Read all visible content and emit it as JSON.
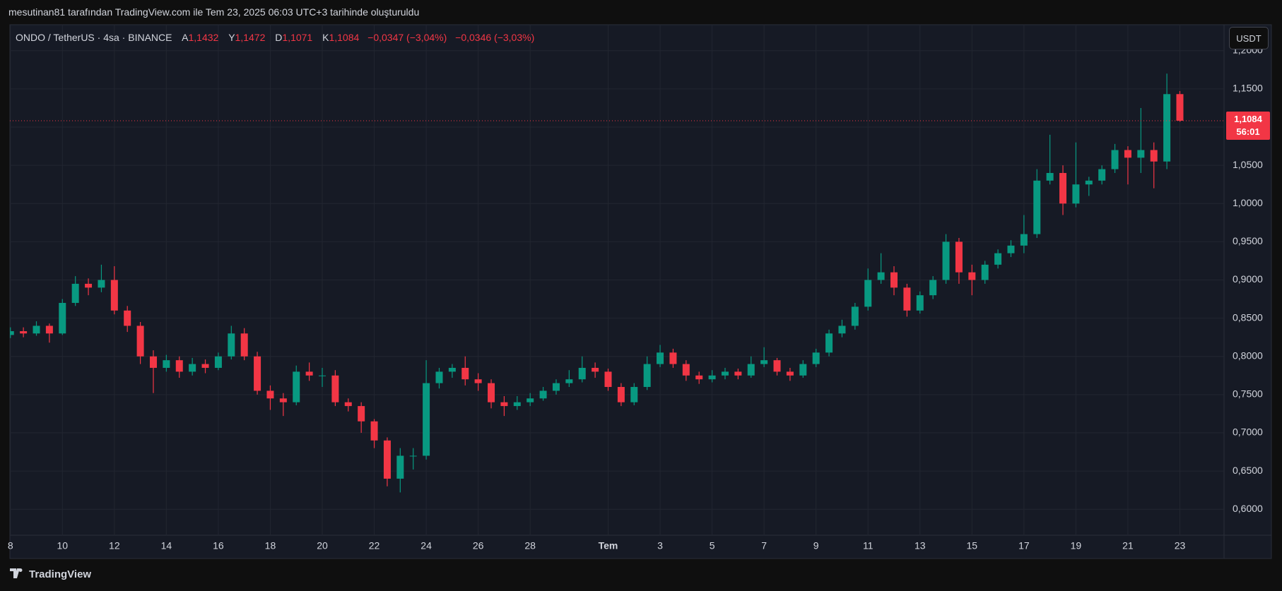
{
  "header": {
    "attribution": "mesutinan81 tarafından TradingView.com ile Tem 23, 2025 06:03 UTC+3 tarihinde oluşturuldu"
  },
  "footer": {
    "brand": "TradingView"
  },
  "chart_data": {
    "type": "candlestick",
    "symbol": "ONDO / TetherUS · 4sa · BINANCE",
    "legend": {
      "open_key": "A",
      "open": "1,1432",
      "high_key": "Y",
      "high": "1,1472",
      "low_key": "D",
      "low": "1,1071",
      "close_key": "K",
      "close": "1,1084",
      "change": "−0,0347 (−3,04%)",
      "change2": "−0,0346 (−3,03%)"
    },
    "currency": "USDT",
    "last_price_label": "1,1084",
    "countdown": "56:01",
    "x": [
      0,
      0.5,
      1,
      1.5,
      2,
      2.5,
      3,
      3.5,
      4,
      4.5,
      5,
      5.5,
      6,
      6.5,
      7,
      7.5,
      8,
      8.5,
      9,
      9.5,
      10,
      10.5,
      11,
      11.5,
      12,
      12.5,
      13,
      13.5,
      14,
      14.5,
      15,
      15.5,
      16,
      16.5,
      17,
      17.5,
      18,
      18.5,
      19,
      19.5,
      20,
      20.5,
      21,
      21.5,
      22,
      22.5,
      23,
      23.5,
      24,
      24.5,
      25,
      25.5,
      26,
      26.5,
      27,
      27.5,
      28,
      28.5,
      29,
      29.5,
      30,
      30.5,
      31,
      31.5,
      32,
      32.5,
      33,
      33.5,
      34,
      34.5,
      35,
      35.5,
      36,
      36.5,
      37,
      37.5,
      38,
      38.5,
      39,
      39.5,
      40,
      40.5,
      41,
      41.5,
      42,
      42.5,
      43,
      43.5,
      44,
      44.5,
      45
    ],
    "open": [
      0.828,
      0.833,
      0.83,
      0.84,
      0.83,
      0.87,
      0.895,
      0.89,
      0.9,
      0.86,
      0.84,
      0.8,
      0.785,
      0.795,
      0.78,
      0.79,
      0.785,
      0.8,
      0.83,
      0.8,
      0.755,
      0.745,
      0.74,
      0.78,
      0.775,
      0.775,
      0.74,
      0.735,
      0.715,
      0.69,
      0.64,
      0.67,
      0.67,
      0.765,
      0.78,
      0.785,
      0.77,
      0.765,
      0.74,
      0.735,
      0.74,
      0.745,
      0.755,
      0.765,
      0.77,
      0.785,
      0.78,
      0.76,
      0.74,
      0.76,
      0.79,
      0.805,
      0.79,
      0.775,
      0.77,
      0.775,
      0.78,
      0.775,
      0.79,
      0.795,
      0.78,
      0.775,
      0.79,
      0.805,
      0.83,
      0.84,
      0.865,
      0.9,
      0.91,
      0.89,
      0.86,
      0.88,
      0.9,
      0.95,
      0.91,
      0.9,
      0.92,
      0.935,
      0.945,
      0.96,
      1.03,
      1.04,
      1.0,
      1.025,
      1.03,
      1.045,
      1.07,
      1.06,
      1.07,
      1.055,
      1.1432
    ],
    "high": [
      0.838,
      0.838,
      0.846,
      0.843,
      0.875,
      0.905,
      0.902,
      0.92,
      0.918,
      0.866,
      0.845,
      0.808,
      0.802,
      0.8,
      0.798,
      0.796,
      0.805,
      0.84,
      0.837,
      0.806,
      0.762,
      0.752,
      0.788,
      0.792,
      0.785,
      0.782,
      0.745,
      0.74,
      0.718,
      0.694,
      0.68,
      0.68,
      0.795,
      0.785,
      0.79,
      0.8,
      0.778,
      0.77,
      0.748,
      0.748,
      0.752,
      0.76,
      0.77,
      0.782,
      0.8,
      0.792,
      0.784,
      0.765,
      0.765,
      0.8,
      0.815,
      0.81,
      0.795,
      0.78,
      0.782,
      0.785,
      0.784,
      0.8,
      0.812,
      0.798,
      0.785,
      0.795,
      0.81,
      0.835,
      0.848,
      0.87,
      0.915,
      0.935,
      0.918,
      0.895,
      0.885,
      0.905,
      0.96,
      0.955,
      0.92,
      0.925,
      0.94,
      0.952,
      0.985,
      1.045,
      1.09,
      1.05,
      1.08,
      1.035,
      1.05,
      1.078,
      1.075,
      1.125,
      1.08,
      1.17,
      1.1472
    ],
    "low": [
      0.824,
      0.825,
      0.827,
      0.818,
      0.828,
      0.866,
      0.88,
      0.884,
      0.855,
      0.832,
      0.79,
      0.752,
      0.78,
      0.772,
      0.775,
      0.778,
      0.782,
      0.796,
      0.795,
      0.75,
      0.73,
      0.722,
      0.736,
      0.768,
      0.76,
      0.735,
      0.728,
      0.7,
      0.68,
      0.63,
      0.622,
      0.652,
      0.665,
      0.758,
      0.772,
      0.762,
      0.755,
      0.732,
      0.722,
      0.73,
      0.735,
      0.742,
      0.75,
      0.76,
      0.766,
      0.772,
      0.755,
      0.735,
      0.736,
      0.756,
      0.786,
      0.785,
      0.768,
      0.764,
      0.766,
      0.77,
      0.77,
      0.772,
      0.786,
      0.775,
      0.768,
      0.772,
      0.786,
      0.8,
      0.825,
      0.835,
      0.86,
      0.895,
      0.88,
      0.852,
      0.856,
      0.875,
      0.895,
      0.895,
      0.88,
      0.895,
      0.915,
      0.93,
      0.935,
      0.955,
      1.025,
      0.985,
      0.995,
      1.01,
      1.025,
      1.04,
      1.025,
      1.04,
      1.02,
      1.045,
      1.1071
    ],
    "close": [
      0.833,
      0.83,
      0.84,
      0.83,
      0.87,
      0.895,
      0.89,
      0.9,
      0.86,
      0.84,
      0.8,
      0.785,
      0.795,
      0.78,
      0.79,
      0.785,
      0.8,
      0.83,
      0.8,
      0.755,
      0.745,
      0.74,
      0.78,
      0.775,
      0.775,
      0.74,
      0.735,
      0.715,
      0.69,
      0.64,
      0.67,
      0.67,
      0.765,
      0.78,
      0.785,
      0.77,
      0.765,
      0.74,
      0.735,
      0.74,
      0.745,
      0.755,
      0.765,
      0.77,
      0.785,
      0.78,
      0.76,
      0.74,
      0.76,
      0.79,
      0.805,
      0.79,
      0.775,
      0.77,
      0.775,
      0.78,
      0.775,
      0.79,
      0.795,
      0.78,
      0.775,
      0.79,
      0.805,
      0.83,
      0.84,
      0.865,
      0.9,
      0.91,
      0.89,
      0.86,
      0.88,
      0.9,
      0.95,
      0.91,
      0.9,
      0.92,
      0.935,
      0.945,
      0.96,
      1.03,
      1.04,
      1.0,
      1.025,
      1.03,
      1.045,
      1.07,
      1.06,
      1.07,
      1.055,
      1.1432,
      1.1084
    ],
    "colors": {
      "up": "#089981",
      "down": "#f23645"
    },
    "xlim": [
      -0.02,
      46.7
    ],
    "ylim": [
      0.566,
      1.234
    ],
    "xticks": [
      {
        "value": 0,
        "label": "8"
      },
      {
        "value": 2,
        "label": "10"
      },
      {
        "value": 4,
        "label": "12"
      },
      {
        "value": 6,
        "label": "14"
      },
      {
        "value": 8,
        "label": "16"
      },
      {
        "value": 10,
        "label": "18"
      },
      {
        "value": 12,
        "label": "20"
      },
      {
        "value": 14,
        "label": "22"
      },
      {
        "value": 16,
        "label": "24"
      },
      {
        "value": 18,
        "label": "26"
      },
      {
        "value": 20,
        "label": "28"
      },
      {
        "value": 23,
        "label": "Tem"
      },
      {
        "value": 25,
        "label": "3"
      },
      {
        "value": 27,
        "label": "5"
      },
      {
        "value": 29,
        "label": "7"
      },
      {
        "value": 31,
        "label": "9"
      },
      {
        "value": 33,
        "label": "11"
      },
      {
        "value": 35,
        "label": "13"
      },
      {
        "value": 37,
        "label": "15"
      },
      {
        "value": 39,
        "label": "17"
      },
      {
        "value": 41,
        "label": "19"
      },
      {
        "value": 43,
        "label": "21"
      },
      {
        "value": 45,
        "label": "23"
      }
    ],
    "yticks": [
      {
        "value": 0.6,
        "label": "0,6000"
      },
      {
        "value": 0.65,
        "label": "0,6500"
      },
      {
        "value": 0.7,
        "label": "0,7000"
      },
      {
        "value": 0.75,
        "label": "0,7500"
      },
      {
        "value": 0.8,
        "label": "0,8000"
      },
      {
        "value": 0.85,
        "label": "0,8500"
      },
      {
        "value": 0.9,
        "label": "0,9000"
      },
      {
        "value": 0.95,
        "label": "0,9500"
      },
      {
        "value": 1.0,
        "label": "1,0000"
      },
      {
        "value": 1.05,
        "label": "1,0500"
      },
      {
        "value": 1.1,
        "label": "1,1000"
      },
      {
        "value": 1.15,
        "label": "1,1500"
      },
      {
        "value": 1.2,
        "label": "1,2000"
      }
    ],
    "grid": true
  }
}
